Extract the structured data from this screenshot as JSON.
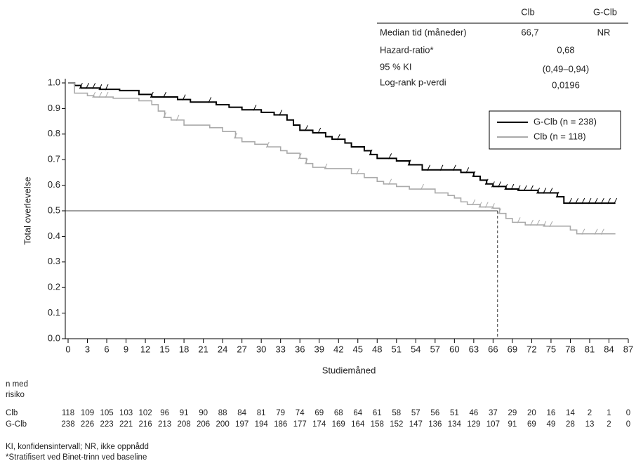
{
  "chart_data": {
    "type": "km",
    "x_label": "Studiemåned",
    "y_label": "Total overlevelse",
    "xlim": [
      0,
      87
    ],
    "ylim": [
      0,
      1
    ],
    "xticks": [
      0,
      3,
      6,
      9,
      12,
      15,
      18,
      21,
      24,
      27,
      30,
      33,
      36,
      39,
      42,
      45,
      48,
      51,
      54,
      57,
      60,
      63,
      66,
      69,
      72,
      75,
      78,
      81,
      84,
      87
    ],
    "yticks": [
      {
        "value": 0,
        "label": "0.0"
      },
      0.1,
      0.2,
      0.3,
      0.4,
      0.5,
      0.6,
      0.7,
      0.8,
      0.9,
      {
        "value": 1,
        "label": "1.0"
      }
    ],
    "series": [
      {
        "name": "G-Clb (n = 238)",
        "color": "#000000",
        "x": [
          0,
          1,
          2,
          5,
          8,
          11,
          13,
          17,
          19,
          23,
          25,
          27,
          30,
          32,
          34,
          35,
          36,
          38,
          40,
          41,
          43,
          44,
          46,
          47,
          48,
          51,
          53,
          55,
          61,
          63,
          64,
          65,
          66,
          68,
          70,
          73,
          76,
          77,
          85
        ],
        "values": [
          1.0,
          0.99,
          0.98,
          0.975,
          0.97,
          0.955,
          0.945,
          0.935,
          0.925,
          0.915,
          0.905,
          0.895,
          0.885,
          0.875,
          0.855,
          0.835,
          0.815,
          0.805,
          0.79,
          0.78,
          0.765,
          0.75,
          0.735,
          0.72,
          0.705,
          0.695,
          0.68,
          0.66,
          0.65,
          0.635,
          0.62,
          0.605,
          0.595,
          0.585,
          0.58,
          0.57,
          0.555,
          0.53,
          0.53
        ],
        "censored": [
          2,
          3,
          4,
          5,
          6,
          13,
          15,
          18,
          22,
          29,
          33,
          37,
          39,
          42,
          47,
          50,
          53,
          56,
          58,
          60,
          62,
          63,
          65,
          66,
          67,
          68,
          69,
          70,
          71,
          72,
          73,
          74,
          75,
          76,
          78,
          79,
          80,
          81,
          82,
          83,
          84,
          85
        ]
      },
      {
        "name": "Clb (n = 118)",
        "color": "#aaaaaa",
        "x": [
          0,
          1,
          3,
          4,
          7,
          11,
          13,
          14,
          15,
          16,
          18,
          22,
          24,
          26,
          27,
          29,
          31,
          33,
          34,
          36,
          37,
          38,
          40,
          44,
          46,
          48,
          49,
          51,
          53,
          57,
          59,
          60,
          61,
          62,
          64,
          66,
          67,
          68,
          69,
          71,
          74,
          78,
          79,
          85
        ],
        "values": [
          1.0,
          0.96,
          0.95,
          0.945,
          0.94,
          0.93,
          0.915,
          0.89,
          0.865,
          0.855,
          0.835,
          0.825,
          0.81,
          0.785,
          0.77,
          0.76,
          0.75,
          0.735,
          0.725,
          0.705,
          0.685,
          0.67,
          0.665,
          0.645,
          0.63,
          0.615,
          0.605,
          0.595,
          0.585,
          0.57,
          0.56,
          0.55,
          0.535,
          0.525,
          0.515,
          0.51,
          0.49,
          0.47,
          0.455,
          0.445,
          0.44,
          0.425,
          0.41,
          0.41
        ],
        "censored": [
          4,
          5,
          6,
          15,
          17,
          26,
          31,
          36,
          37,
          40,
          45,
          50,
          55,
          63,
          64,
          65,
          66,
          67,
          70,
          72,
          73,
          74,
          75,
          80,
          82,
          83
        ]
      }
    ],
    "median_line": {
      "value": 0.5,
      "x": 66.7
    },
    "stats_table": {
      "header": [
        "Clb",
        "G-Clb"
      ],
      "rows": [
        [
          "Median tid (måneder)",
          "66,7",
          "NR"
        ],
        [
          "Hazard-ratio*",
          "0,68"
        ],
        [
          "95 % KI",
          "(0,49–0,94)"
        ],
        [
          "Log-rank p-verdi",
          "0,0196"
        ]
      ]
    },
    "risk_table": {
      "title": [
        "n med",
        "risiko"
      ],
      "rows": [
        {
          "name": "Clb",
          "values": [
            118,
            109,
            105,
            103,
            102,
            96,
            91,
            90,
            88,
            84,
            81,
            79,
            74,
            69,
            68,
            64,
            61,
            58,
            57,
            56,
            51,
            46,
            37,
            29,
            20,
            16,
            14,
            2,
            1,
            0
          ]
        },
        {
          "name": "G-Clb",
          "values": [
            238,
            226,
            223,
            221,
            216,
            213,
            208,
            206,
            200,
            197,
            194,
            186,
            177,
            174,
            169,
            164,
            158,
            152,
            147,
            136,
            134,
            129,
            107,
            91,
            69,
            49,
            28,
            13,
            2,
            0
          ]
        }
      ]
    },
    "footnotes": [
      "KI, konfidensintervall; NR, ikke oppnådd",
      "*Stratifisert ved Binet-trinn ved baseline"
    ]
  }
}
